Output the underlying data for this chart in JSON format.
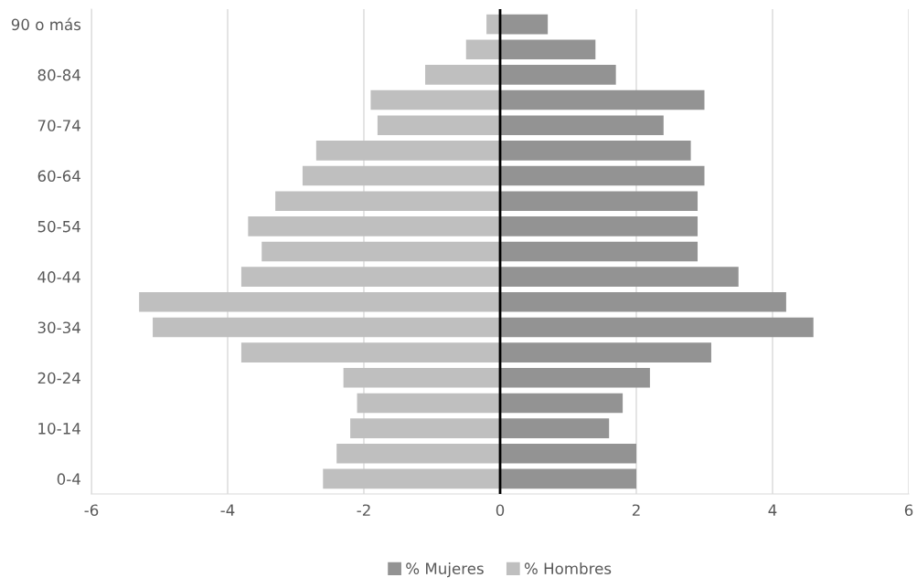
{
  "chart_data": {
    "type": "bar",
    "orientation": "horizontal",
    "stacked": true,
    "categories": [
      "90 o más",
      null,
      "80-84",
      null,
      "70-74",
      null,
      "60-64",
      null,
      "50-54",
      null,
      "40-44",
      null,
      "30-34",
      null,
      "20-24",
      null,
      "10-14",
      null,
      "0-4"
    ],
    "series": [
      {
        "name": "% Mujeres",
        "color": "#939393",
        "values": [
          0.7,
          1.4,
          1.7,
          3.0,
          2.4,
          2.8,
          3.0,
          2.9,
          2.9,
          2.9,
          3.5,
          4.2,
          4.6,
          3.1,
          2.2,
          1.8,
          1.6,
          2.0,
          2.0
        ]
      },
      {
        "name": "% Hombres",
        "color": "#bfbfbf",
        "values": [
          -0.2,
          -0.5,
          -1.1,
          -1.9,
          -1.8,
          -2.7,
          -2.9,
          -3.3,
          -3.7,
          -3.5,
          -3.8,
          -5.3,
          -5.1,
          -3.8,
          -2.3,
          -2.1,
          -2.2,
          -2.4,
          -2.6
        ]
      }
    ],
    "xlim": [
      -6,
      6
    ],
    "xticks": [
      -6,
      -4,
      -2,
      0,
      2,
      4,
      6
    ],
    "grid": "x",
    "legend": "bottom",
    "ref_lines": [
      {
        "axis": "x",
        "value": 0,
        "color": "#000000"
      }
    ]
  }
}
